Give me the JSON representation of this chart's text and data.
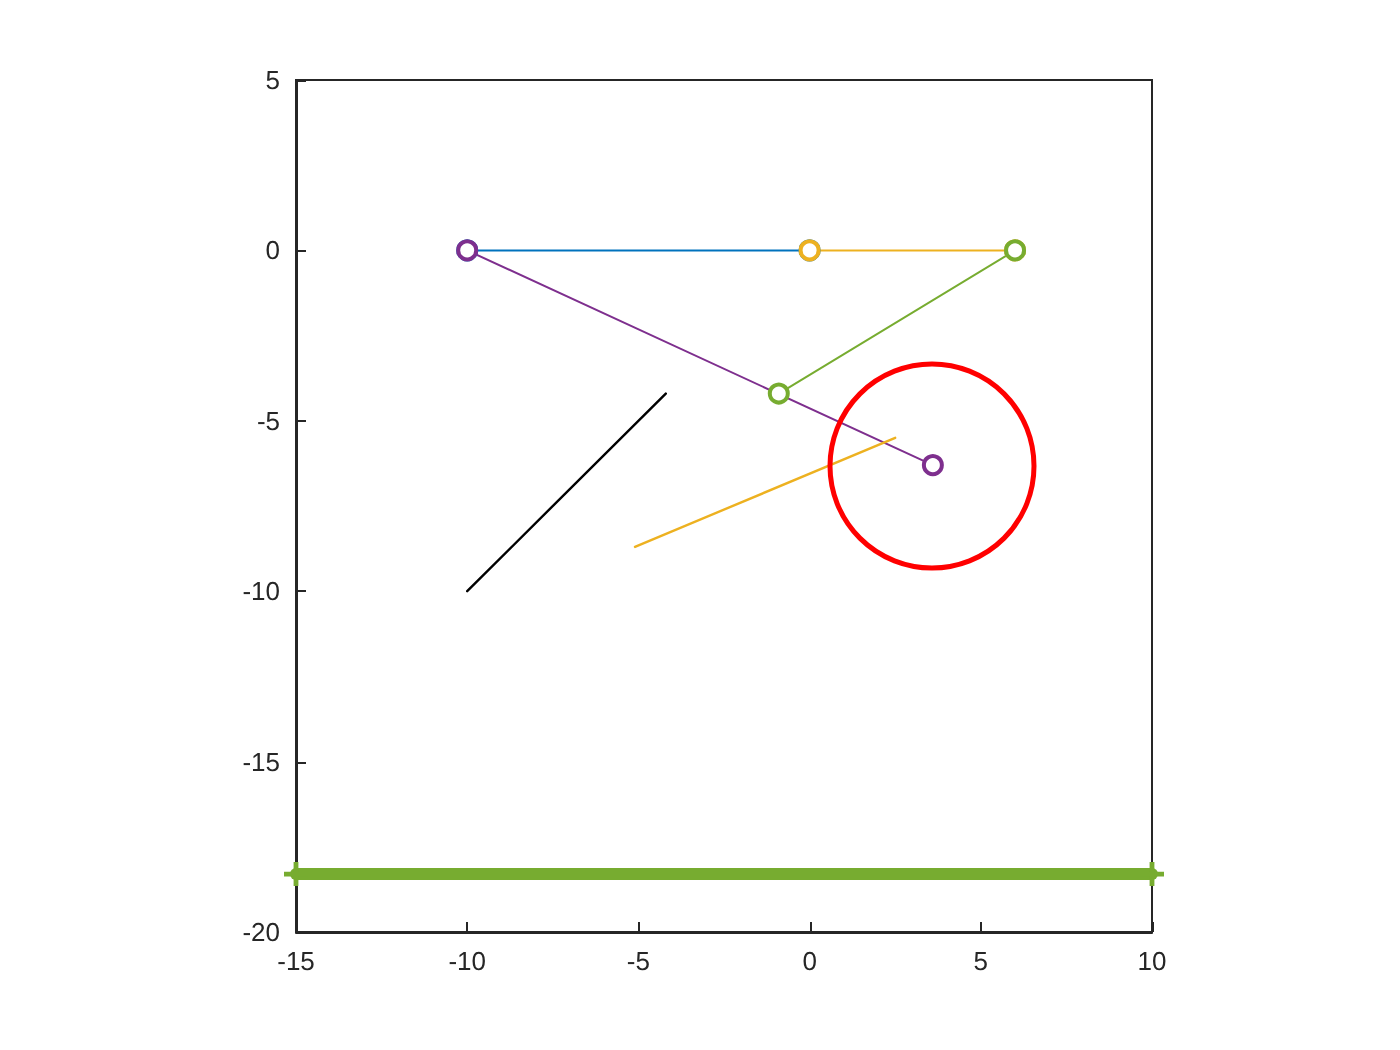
{
  "chart_data": {
    "type": "line",
    "xlim": [
      -15,
      10
    ],
    "ylim": [
      -20,
      5
    ],
    "xticks": [
      -15,
      -10,
      -5,
      0,
      5,
      10
    ],
    "yticks": [
      -20,
      -15,
      -10,
      -5,
      0,
      5
    ],
    "series": [
      {
        "color": "#0072bd",
        "x": [
          -10,
          0
        ],
        "values": [
          0,
          0
        ],
        "marker": "circle"
      },
      {
        "color": "#edb120",
        "x": [
          0,
          6
        ],
        "values": [
          0,
          0
        ],
        "marker": "circle"
      },
      {
        "color": "#77ac30",
        "x": [
          6,
          -0.9
        ],
        "values": [
          0,
          -4.2
        ],
        "marker": "circle"
      },
      {
        "color": "#7e2f8e",
        "x": [
          -10,
          3.6
        ],
        "values": [
          0,
          -6.3
        ],
        "marker": "circle"
      },
      {
        "color": "#000000",
        "x": [
          -10,
          -4.2
        ],
        "values": [
          -10,
          -4.2
        ],
        "marker": "none"
      },
      {
        "color": "#edb120",
        "x": [
          -5.1,
          2.5
        ],
        "values": [
          -8.7,
          -5.5
        ],
        "marker": "none"
      },
      {
        "color": "#77ac30",
        "x": [
          -15,
          10
        ],
        "values": [
          -18.3,
          -18.3
        ],
        "marker": "cross"
      }
    ]
  }
}
